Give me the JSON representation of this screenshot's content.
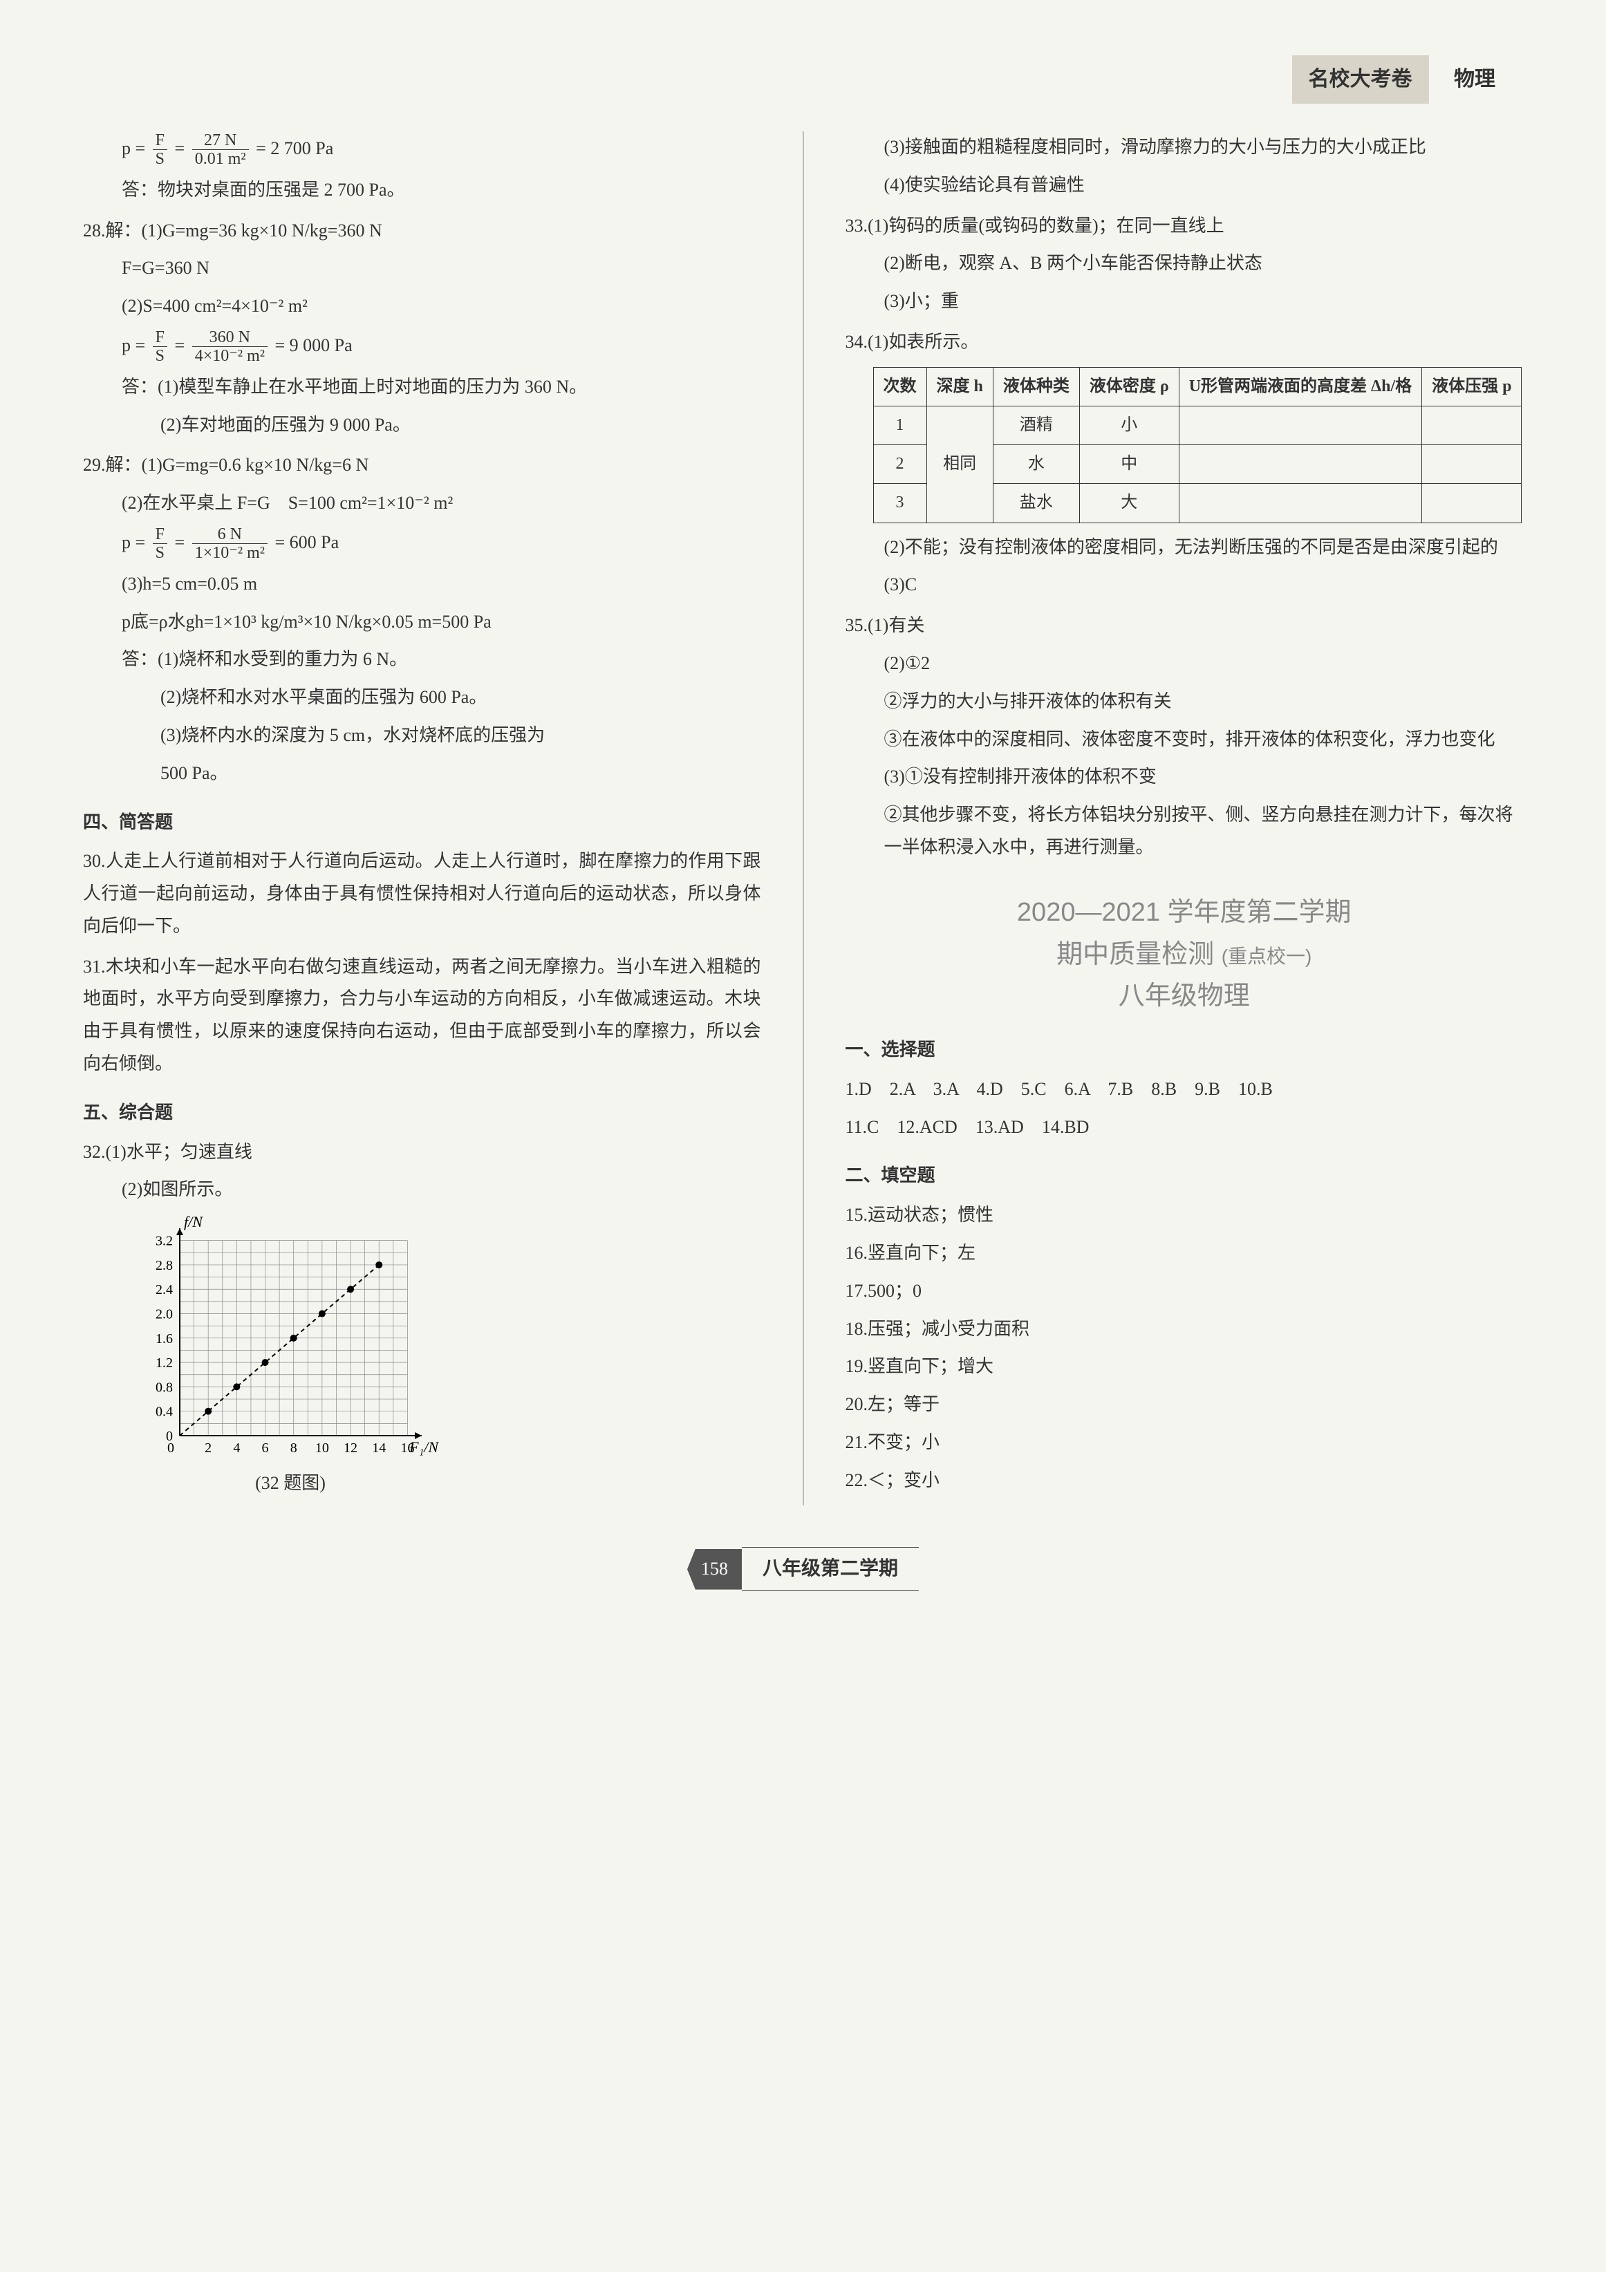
{
  "header": {
    "badge": "名校大考卷",
    "subject": "物理"
  },
  "footer": {
    "page": "158",
    "text": "八年级第二学期"
  },
  "left": {
    "p27_eq": "p = F/S = 27 N / 0.01 m² = 2 700 Pa",
    "p27_frac_num": "27 N",
    "p27_frac_den": "0.01 m²",
    "p27_res": "= 2 700 Pa",
    "p27_lhs": "p =",
    "p27_FS_num": "F",
    "p27_FS_den": "S",
    "p27_ans": "答：物块对桌面的压强是 2 700 Pa。",
    "q28": "28.解：(1)G=mg=36 kg×10 N/kg=360 N",
    "q28_b": "F=G=360 N",
    "q28_c": "(2)S=400 cm²=4×10⁻² m²",
    "q28_p_lhs": "p =",
    "q28_p_num": "360 N",
    "q28_p_den": "4×10⁻² m²",
    "q28_p_res": "= 9 000 Pa",
    "q28_ans1": "答：(1)模型车静止在水平地面上时对地面的压力为 360 N。",
    "q28_ans2": "(2)车对地面的压强为 9 000 Pa。",
    "q29": "29.解：(1)G=mg=0.6 kg×10 N/kg=6 N",
    "q29_b": "(2)在水平桌上 F=G　S=100 cm²=1×10⁻² m²",
    "q29_p_lhs": "p =",
    "q29_p_num": "6 N",
    "q29_p_den": "1×10⁻² m²",
    "q29_p_res": "= 600 Pa",
    "q29_c": "(3)h=5 cm=0.05 m",
    "q29_d": "p底=ρ水gh=1×10³ kg/m³×10 N/kg×0.05 m=500 Pa",
    "q29_ans1": "答：(1)烧杯和水受到的重力为 6 N。",
    "q29_ans2": "(2)烧杯和水对水平桌面的压强为 600 Pa。",
    "q29_ans3": "(3)烧杯内水的深度为 5 cm，水对烧杯底的压强为",
    "q29_ans3b": "500 Pa。",
    "sec4": "四、简答题",
    "q30": "30.人走上人行道前相对于人行道向后运动。人走上人行道时，脚在摩擦力的作用下跟人行道一起向前运动，身体由于具有惯性保持相对人行道向后的运动状态，所以身体向后仰一下。",
    "q31": "31.木块和小车一起水平向右做匀速直线运动，两者之间无摩擦力。当小车进入粗糙的地面时，水平方向受到摩擦力，合力与小车运动的方向相反，小车做减速运动。木块由于具有惯性，以原来的速度保持向右运动，但由于底部受到小车的摩擦力，所以会向右倾倒。",
    "sec5": "五、综合题",
    "q32_1": "32.(1)水平；匀速直线",
    "q32_2": "(2)如图所示。",
    "chart": {
      "type": "scatter-line",
      "xlabel": "F₁/N",
      "ylabel": "f/N",
      "x_ticks": [
        2,
        4,
        6,
        8,
        10,
        12,
        14,
        16
      ],
      "y_ticks": [
        0,
        0.4,
        0.8,
        1.2,
        1.6,
        2.0,
        2.4,
        2.8,
        3.2
      ],
      "xlim": [
        0,
        17
      ],
      "ylim": [
        0,
        3.4
      ],
      "points": [
        [
          2,
          0.4
        ],
        [
          4,
          0.8
        ],
        [
          6,
          1.2
        ],
        [
          8,
          1.6
        ],
        [
          10,
          2.0
        ],
        [
          12,
          2.4
        ],
        [
          14,
          2.8
        ]
      ],
      "grid_color": "#888",
      "axis_color": "#000",
      "line_color": "#000",
      "marker": "circle",
      "marker_size": 5,
      "caption": "(32 题图)"
    }
  },
  "right": {
    "p33_3": "(3)接触面的粗糙程度相同时，滑动摩擦力的大小与压力的大小成正比",
    "p33_4": "(4)使实验结论具有普遍性",
    "q33_1": "33.(1)钩码的质量(或钩码的数量)；在同一直线上",
    "q33_2": "(2)断电，观察 A、B 两个小车能否保持静止状态",
    "q33_3": "(3)小；重",
    "q34_1": "34.(1)如表所示。",
    "table": {
      "headers": [
        "次数",
        "深度 h",
        "液体种类",
        "液体密度 ρ",
        "U形管两端液面的高度差 Δh/格",
        "液体压强 p"
      ],
      "rows": [
        [
          "1",
          "",
          "酒精",
          "小",
          "",
          ""
        ],
        [
          "2",
          "相同",
          "水",
          "中",
          "",
          ""
        ],
        [
          "3",
          "",
          "盐水",
          "大",
          "",
          ""
        ]
      ],
      "merge_col2": true
    },
    "q34_2": "(2)不能；没有控制液体的密度相同，无法判断压强的不同是否是由深度引起的",
    "q34_3": "(3)C",
    "q35_1": "35.(1)有关",
    "q35_2a": "(2)①2",
    "q35_2b": "②浮力的大小与排开液体的体积有关",
    "q35_2c": "③在液体中的深度相同、液体密度不变时，排开液体的体积变化，浮力也变化",
    "q35_3a": "(3)①没有控制排开液体的体积不变",
    "q35_3b": "②其他步骤不变，将长方体铝块分别按平、侧、竖方向悬挂在测力计下，每次将一半体积浸入水中，再进行测量。",
    "exam_title1": "2020—2021 学年度第二学期",
    "exam_title2": "期中质量检测",
    "exam_title2_sub": "(重点校一)",
    "exam_title3": "八年级物理",
    "sec1": "一、选择题",
    "mc": "1.D　2.A　3.A　4.D　5.C　6.A　7.B　8.B　9.B　10.B",
    "mc2": "11.C　12.ACD　13.AD　14.BD",
    "sec2": "二、填空题",
    "f15": "15.运动状态；惯性",
    "f16": "16.竖直向下；左",
    "f17": "17.500；0",
    "f18": "18.压强；减小受力面积",
    "f19": "19.竖直向下；增大",
    "f20": "20.左；等于",
    "f21": "21.不变；小",
    "f22": "22.＜；变小"
  }
}
